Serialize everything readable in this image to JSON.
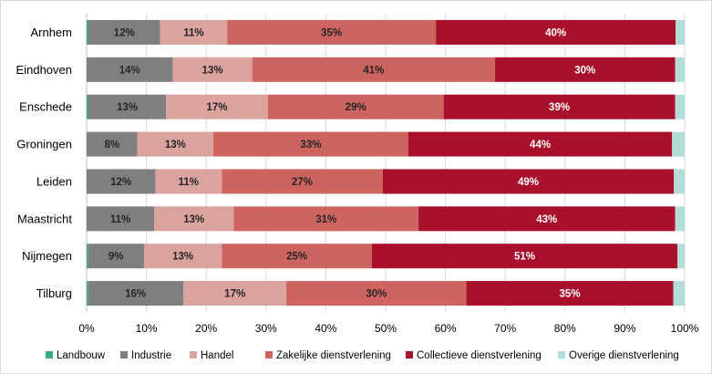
{
  "chart_data": {
    "type": "bar",
    "orientation": "horizontal",
    "stacked": "percent",
    "categories": [
      "Arnhem",
      "Eindhoven",
      "Enschede",
      "Groningen",
      "Leiden",
      "Maastricht",
      "Nijmegen",
      "Tilburg"
    ],
    "series": [
      {
        "name": "Landbouw",
        "color": "#3aa98a",
        "values": [
          0.3,
          0.0,
          0.3,
          0.0,
          0.0,
          0.0,
          0.2,
          0.2
        ]
      },
      {
        "name": "Industrie",
        "color": "#7f7f7f",
        "values": [
          12,
          14.4,
          13,
          8.5,
          11.5,
          11.3,
          9.4,
          16
        ],
        "labels": [
          "12%",
          "14%",
          "13%",
          "8%",
          "12%",
          "11%",
          "9%",
          "16%"
        ]
      },
      {
        "name": "Handel",
        "color": "#dba39e",
        "values": [
          11.2,
          13.3,
          17,
          12.7,
          11.1,
          13.3,
          13,
          17.2
        ],
        "labels": [
          "11%",
          "13%",
          "17%",
          "13%",
          "11%",
          "13%",
          "13%",
          "17%"
        ]
      },
      {
        "name": "Zakelijke dienstverlening",
        "color": "#cd6460",
        "values": [
          34.9,
          40.6,
          29.4,
          32.6,
          26.9,
          30.9,
          25.1,
          30.1
        ],
        "labels": [
          "35%",
          "41%",
          "29%",
          "33%",
          "27%",
          "31%",
          "25%",
          "30%"
        ]
      },
      {
        "name": "Collectieve dienstverlening",
        "color": "#a8102b",
        "values": [
          40.1,
          30.1,
          38.7,
          44.1,
          48.7,
          42.9,
          51.1,
          34.6
        ],
        "labels": [
          "40%",
          "30%",
          "39%",
          "44%",
          "49%",
          "43%",
          "51%",
          "35%"
        ]
      },
      {
        "name": "Overige dienstverlening",
        "color": "#b3ded8",
        "values": [
          1.5,
          1.6,
          1.6,
          2.1,
          1.8,
          1.6,
          1.2,
          1.9
        ]
      }
    ],
    "xlim": [
      0,
      100
    ],
    "xticks": [
      "0%",
      "10%",
      "20%",
      "30%",
      "40%",
      "50%",
      "60%",
      "70%",
      "80%",
      "90%",
      "100%"
    ],
    "legend_position": "bottom",
    "title": "",
    "xlabel": "",
    "ylabel": ""
  }
}
